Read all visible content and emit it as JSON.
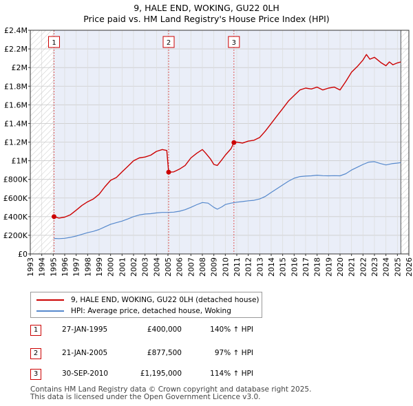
{
  "chart_data": {
    "type": "line",
    "title": "9, HALE END, WOKING, GU22 0LH",
    "subtitle": "Price paid vs. HM Land Registry's House Price Index (HPI)",
    "x_range": [
      1993,
      2026
    ],
    "ylim": [
      0,
      2400000
    ],
    "y_ticks": [
      0,
      200000,
      400000,
      600000,
      800000,
      1000000,
      1200000,
      1400000,
      1600000,
      1800000,
      2000000,
      2200000,
      2400000
    ],
    "y_tick_labels": [
      "£0",
      "£200K",
      "£400K",
      "£600K",
      "£800K",
      "£1M",
      "£1.2M",
      "£1.4M",
      "£1.6M",
      "£1.8M",
      "£2M",
      "£2.2M",
      "£2.4M"
    ],
    "x_ticks": [
      1993,
      1994,
      1995,
      1996,
      1997,
      1998,
      1999,
      2000,
      2001,
      2002,
      2003,
      2004,
      2005,
      2006,
      2007,
      2008,
      2009,
      2010,
      2011,
      2012,
      2013,
      2014,
      2015,
      2016,
      2017,
      2018,
      2019,
      2020,
      2021,
      2022,
      2023,
      2024,
      2025,
      2026
    ],
    "x_tick_labels": [
      "1993",
      "1994",
      "1995",
      "1996",
      "1997",
      "1998",
      "1999",
      "2000",
      "2001",
      "2002",
      "2003",
      "2004",
      "2005",
      "2006",
      "2007",
      "2008",
      "2009",
      "2010",
      "2011",
      "2012",
      "2013",
      "2014",
      "2015",
      "2016",
      "2017",
      "2018",
      "2019",
      "2020",
      "2021",
      "2022",
      "2023",
      "2024",
      "2025",
      "2026"
    ],
    "hatch_before": 1995.07,
    "hatch_after": 2025.3,
    "series": [
      {
        "name": "9, HALE END, WOKING, GU22 0LH (detached house)",
        "color": "#cc0000",
        "x": [
          1995.07,
          1995.5,
          1996,
          1996.5,
          1997,
          1997.5,
          1998,
          1998.5,
          1999,
          1999.5,
          2000,
          2000.5,
          2001,
          2001.5,
          2002,
          2002.5,
          2003,
          2003.5,
          2004,
          2004.5,
          2004.9,
          2005.06,
          2005.5,
          2006,
          2006.5,
          2007,
          2007.5,
          2008,
          2008.3,
          2008.7,
          2009,
          2009.3,
          2009.7,
          2010,
          2010.5,
          2010.75,
          2011,
          2011.5,
          2012,
          2012.5,
          2013,
          2013.5,
          2014,
          2014.5,
          2015,
          2015.5,
          2016,
          2016.5,
          2017,
          2017.5,
          2018,
          2018.5,
          2019,
          2019.5,
          2020,
          2020.5,
          2021,
          2021.5,
          2022,
          2022.3,
          2022.6,
          2023,
          2023.3,
          2023.6,
          2024,
          2024.3,
          2024.6,
          2025,
          2025.3
        ],
        "values": [
          400000,
          385000,
          395000,
          420000,
          470000,
          520000,
          560000,
          590000,
          640000,
          720000,
          790000,
          820000,
          880000,
          940000,
          1000000,
          1030000,
          1040000,
          1060000,
          1100000,
          1120000,
          1110000,
          877500,
          880000,
          910000,
          950000,
          1030000,
          1080000,
          1120000,
          1080000,
          1020000,
          960000,
          950000,
          1010000,
          1060000,
          1130000,
          1195000,
          1200000,
          1190000,
          1210000,
          1220000,
          1250000,
          1320000,
          1400000,
          1480000,
          1560000,
          1640000,
          1700000,
          1760000,
          1780000,
          1770000,
          1790000,
          1760000,
          1780000,
          1790000,
          1760000,
          1850000,
          1950000,
          2010000,
          2080000,
          2140000,
          2090000,
          2110000,
          2080000,
          2050000,
          2020000,
          2060000,
          2030000,
          2050000,
          2060000
        ]
      },
      {
        "name": "HPI: Average price, detached house, Woking",
        "color": "#5588cc",
        "x": [
          1995.07,
          1995.5,
          1996,
          1996.5,
          1997,
          1997.5,
          1998,
          1998.5,
          1999,
          1999.5,
          2000,
          2000.5,
          2001,
          2001.5,
          2002,
          2002.5,
          2003,
          2003.5,
          2004,
          2004.5,
          2005,
          2005.5,
          2006,
          2006.5,
          2007,
          2007.5,
          2008,
          2008.5,
          2009,
          2009.3,
          2009.7,
          2010,
          2010.5,
          2011,
          2011.5,
          2012,
          2012.5,
          2013,
          2013.5,
          2014,
          2014.5,
          2015,
          2015.5,
          2016,
          2016.5,
          2017,
          2017.5,
          2018,
          2018.5,
          2019,
          2019.5,
          2020,
          2020.5,
          2021,
          2021.5,
          2022,
          2022.5,
          2023,
          2023.5,
          2024,
          2024.5,
          2025,
          2025.3
        ],
        "values": [
          166000,
          164000,
          168000,
          178000,
          192000,
          210000,
          228000,
          242000,
          262000,
          290000,
          318000,
          335000,
          352000,
          375000,
          400000,
          418000,
          428000,
          432000,
          440000,
          445000,
          445000,
          448000,
          458000,
          475000,
          500000,
          528000,
          552000,
          545000,
          500000,
          480000,
          505000,
          530000,
          545000,
          555000,
          562000,
          570000,
          575000,
          590000,
          618000,
          660000,
          700000,
          740000,
          780000,
          812000,
          830000,
          835000,
          838000,
          845000,
          840000,
          838000,
          840000,
          838000,
          860000,
          900000,
          930000,
          960000,
          985000,
          990000,
          970000,
          955000,
          968000,
          975000,
          980000
        ]
      }
    ],
    "sales": [
      {
        "label": "1",
        "x": 1995.07,
        "value": 400000
      },
      {
        "label": "2",
        "x": 2005.06,
        "value": 877500
      },
      {
        "label": "3",
        "x": 2010.75,
        "value": 1195000
      }
    ]
  },
  "legend": {
    "items": [
      {
        "label": "9, HALE END, WOKING, GU22 0LH (detached house)",
        "color": "#cc0000"
      },
      {
        "label": "HPI: Average price, detached house, Woking",
        "color": "#5588cc"
      }
    ]
  },
  "sales_table": [
    {
      "num": "1",
      "date": "27-JAN-1995",
      "price": "£400,000",
      "hpi": "140% ↑ HPI"
    },
    {
      "num": "2",
      "date": "21-JAN-2005",
      "price": "£877,500",
      "hpi": "97% ↑ HPI"
    },
    {
      "num": "3",
      "date": "30-SEP-2010",
      "price": "£1,195,000",
      "hpi": "114% ↑ HPI"
    }
  ],
  "footer": {
    "line1": "Contains HM Land Registry data © Crown copyright and database right 2025.",
    "line2": "This data is licensed under the Open Government Licence v3.0."
  }
}
